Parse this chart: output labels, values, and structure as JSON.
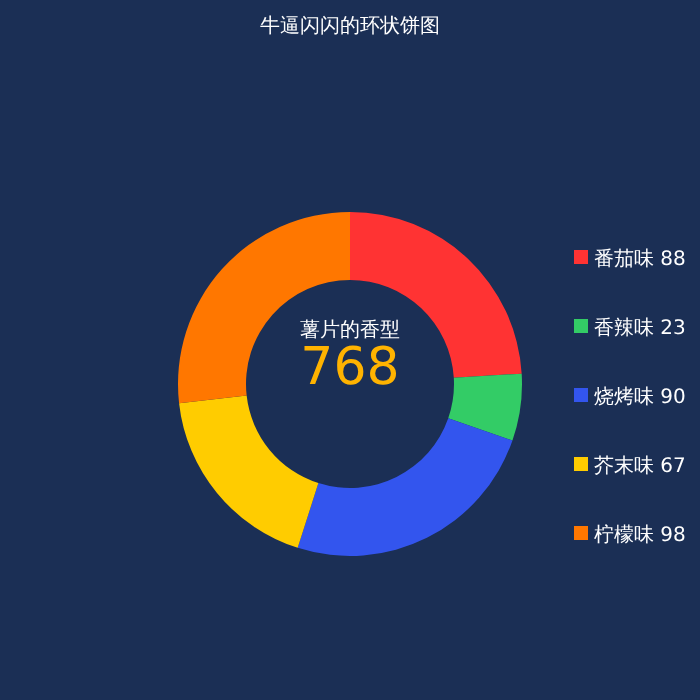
{
  "chart_data": {
    "type": "donut",
    "title": "牛逼闪闪的环状饼图",
    "subtitle": "薯片的香型",
    "annotations": [
      "768"
    ],
    "categories": [
      "番茄味 88",
      "香辣味 23",
      "烧烤味 90",
      "芥末味 67",
      "柠檬味 98"
    ],
    "values": [
      88,
      23,
      90,
      67,
      98
    ],
    "colors": [
      "#ff3333",
      "#33cc66",
      "#3355ee",
      "#ffcc00",
      "#ff7700"
    ],
    "legend": "right"
  }
}
